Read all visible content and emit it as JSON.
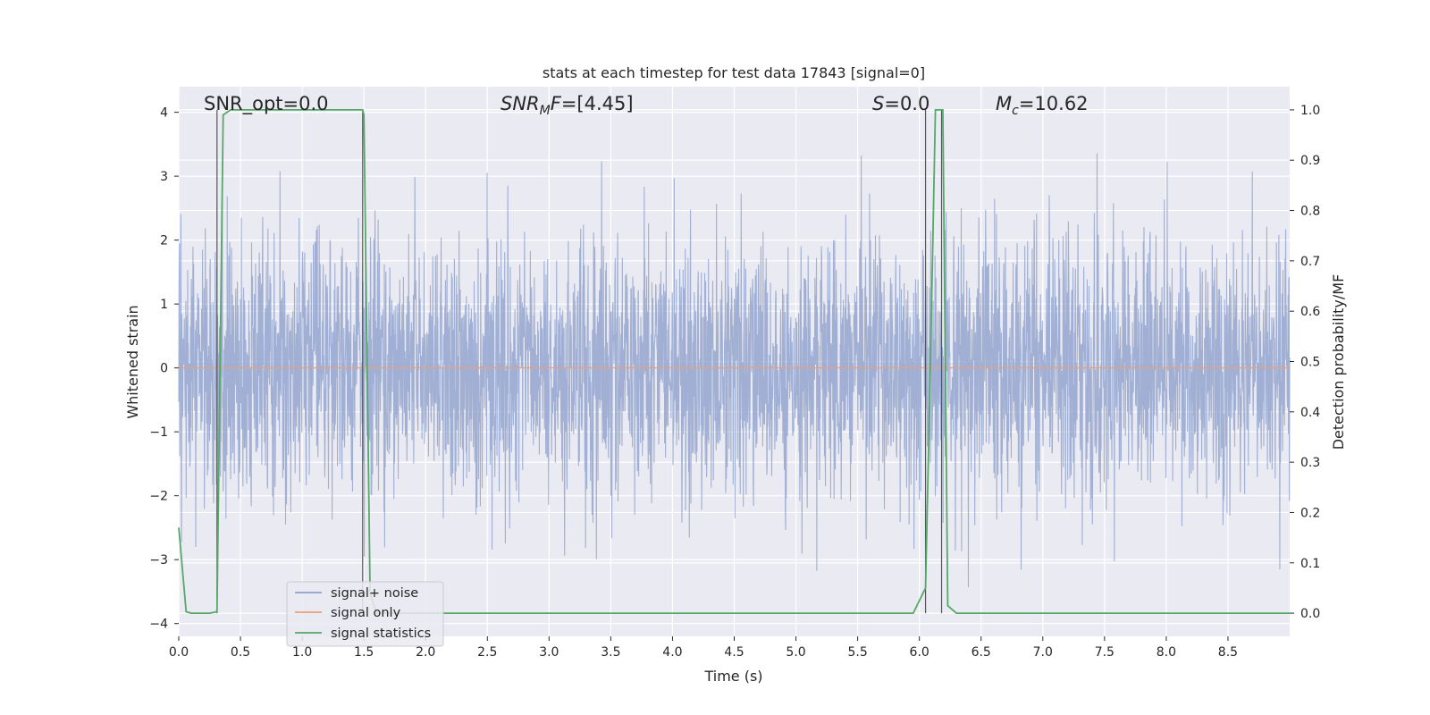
{
  "chart_data": {
    "type": "line",
    "title": "stats at each timestep for test data 17843 [signal=0]",
    "xlabel": "Time (s)",
    "ylabel": "Whitened strain",
    "y2label": "Detection probability/MF",
    "xlim": [
      0.0,
      9.0
    ],
    "ylim": [
      -4.2,
      4.4
    ],
    "y2lim": [
      -0.046,
      1.046
    ],
    "x_ticks": [
      0.0,
      0.5,
      1.0,
      1.5,
      2.0,
      2.5,
      3.0,
      3.5,
      4.0,
      4.5,
      5.0,
      5.5,
      6.0,
      6.5,
      7.0,
      7.5,
      8.0,
      8.5
    ],
    "x_tick_labels": [
      "0.0",
      "0.5",
      "1.0",
      "1.5",
      "2.0",
      "2.5",
      "3.0",
      "3.5",
      "4.0",
      "4.5",
      "5.0",
      "5.5",
      "6.0",
      "6.5",
      "7.0",
      "7.5",
      "8.0",
      "8.5"
    ],
    "y_ticks": [
      -4,
      -3,
      -2,
      -1,
      0,
      1,
      2,
      3,
      4
    ],
    "y_tick_labels": [
      "−4",
      "−3",
      "−2",
      "−1",
      "0",
      "1",
      "2",
      "3",
      "4"
    ],
    "y2_ticks": [
      0.0,
      0.1,
      0.2,
      0.3,
      0.4,
      0.5,
      0.6,
      0.7,
      0.8,
      0.9,
      1.0
    ],
    "y2_tick_labels": [
      "0.0",
      "0.1",
      "0.2",
      "0.3",
      "0.4",
      "0.5",
      "0.6",
      "0.7",
      "0.8",
      "0.9",
      "1.0"
    ],
    "grid": true,
    "legend_placement": "lower-left",
    "annotations": {
      "snr_opt": "SNR_opt=0.0",
      "snr_mf_prefix": "SNR",
      "snr_mf_sub": "M",
      "snr_mf_suffix": "F",
      "snr_mf_value": "=[4.45]",
      "s_symbol": "S",
      "s_value": "=0.0",
      "mc_symbol": "M",
      "mc_sub": "c",
      "mc_value": "=10.62"
    },
    "vertical_lines_x": [
      0.31,
      1.49,
      6.05,
      6.18
    ],
    "series": [
      {
        "name": "signal+ noise",
        "axis": "left",
        "color": "#8da0cb",
        "noise_std": 1.0,
        "x_range": [
          0.0,
          9.0
        ]
      },
      {
        "name": "signal only",
        "axis": "left",
        "color": "#e8a07a",
        "x": [
          0.0,
          9.0
        ],
        "y": [
          0.0,
          0.0
        ]
      },
      {
        "name": "signal statistics",
        "axis": "right",
        "color": "#55a868",
        "x": [
          0.0,
          0.06,
          0.1,
          0.25,
          0.31,
          0.36,
          0.42,
          0.5,
          1.0,
          1.4,
          1.49,
          1.5,
          1.55,
          1.6,
          2.0,
          3.0,
          4.0,
          5.0,
          5.95,
          6.05,
          6.09,
          6.13,
          6.19,
          6.23,
          6.3,
          7.0,
          8.0,
          9.0
        ],
        "y": [
          0.17,
          0.003,
          0.0,
          0.0,
          0.003,
          0.99,
          1.0,
          1.0,
          1.0,
          1.0,
          1.0,
          0.99,
          0.04,
          0.0,
          0.0,
          0.0,
          0.0,
          0.0,
          0.0,
          0.05,
          0.5,
          1.0,
          1.0,
          0.015,
          0.0,
          0.0,
          0.0,
          0.0
        ]
      }
    ]
  },
  "legend": {
    "items": [
      "signal+ noise",
      "signal only",
      "signal statistics"
    ]
  }
}
